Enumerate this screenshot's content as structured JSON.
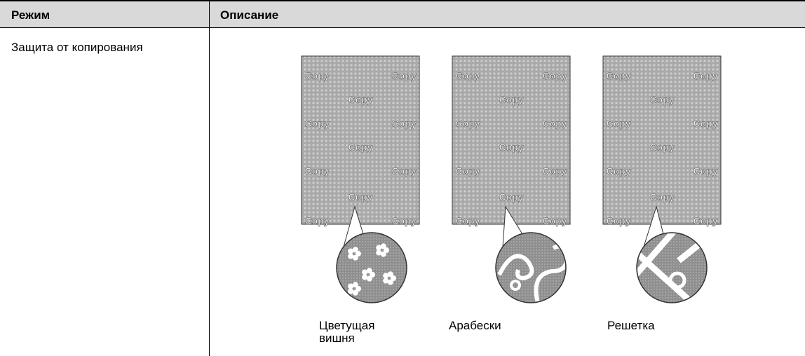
{
  "table": {
    "headers": [
      "Режим",
      "Описание"
    ],
    "rows": [
      [
        "Защита от копирования"
      ]
    ]
  },
  "illustration": {
    "watermark": "Copy",
    "patterns": [
      {
        "caption": "Цветущая вишня"
      },
      {
        "caption": "Арабески"
      },
      {
        "caption": "Решетка"
      }
    ]
  }
}
